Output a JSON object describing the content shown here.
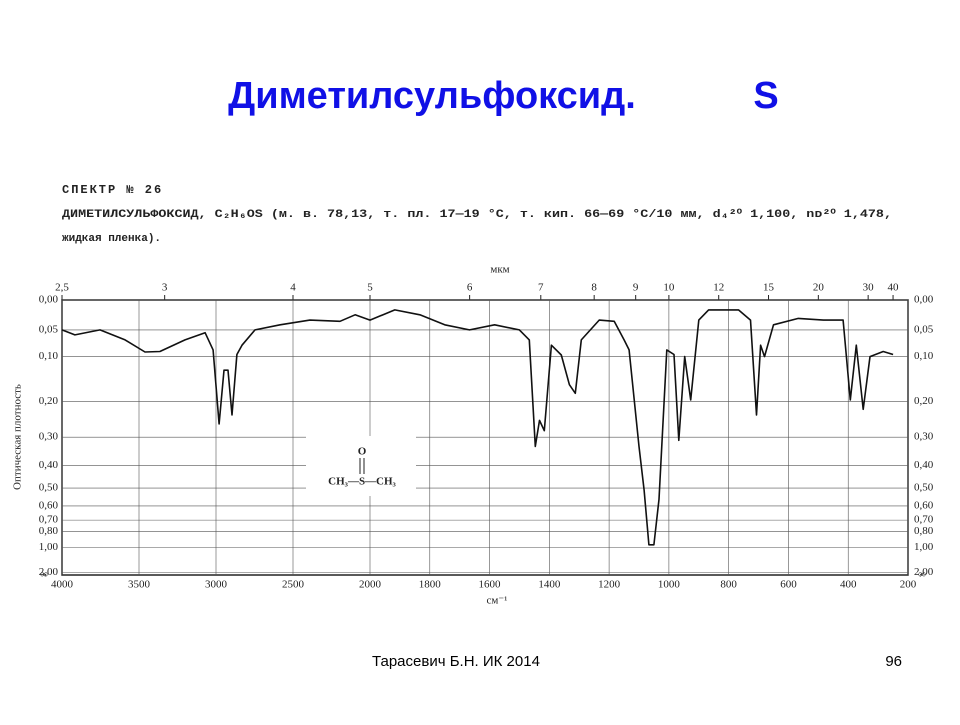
{
  "header": {
    "title": "Диметилсульфоксид.",
    "title_symbol": "S"
  },
  "spectrum_caption": {
    "line1": "СПЕКТР № 26",
    "line2": "ДИМЕТИЛСУЛЬФОКСИД, C₂H₆OS (м. в. 78,13, т. пл. 17—19 °С, т. кип. 66—69 °С/10 мм, d₄²⁰ 1,100, nᴅ²⁰ 1,478,",
    "line3": "жидкая пленка)."
  },
  "chart_data": {
    "type": "line",
    "color": "#111111",
    "grid": true,
    "xlabel": "см⁻¹",
    "ylabel": "Оптическая плотность",
    "top_axis_label": "мкм",
    "y_bottom_label": "∞",
    "structure": {
      "oxygen": "O",
      "formula": "CH₃—S—CH₃"
    },
    "xlim": [
      4000,
      200
    ],
    "xticks": [
      4000,
      3500,
      3000,
      2500,
      2000,
      1800,
      1600,
      1400,
      1200,
      1000,
      800,
      600,
      400,
      200
    ],
    "top_ticks": [
      {
        "value": 2.5,
        "label": "2,5"
      },
      3,
      4,
      5,
      6,
      7,
      8,
      9,
      10,
      12,
      15,
      20,
      30,
      40
    ],
    "yticks": [
      {
        "value": 0,
        "label": "0,00"
      },
      {
        "value": 0.05,
        "label": "0,05"
      },
      {
        "value": 0.1,
        "label": "0,10"
      },
      {
        "value": 0.2,
        "label": "0,20"
      },
      {
        "value": 0.3,
        "label": "0,30"
      },
      {
        "value": 0.4,
        "label": "0,40"
      },
      {
        "value": 0.5,
        "label": "0,50"
      },
      {
        "value": 0.6,
        "label": "0,60"
      },
      {
        "value": 0.7,
        "label": "0,70"
      },
      {
        "value": 0.8,
        "label": "0,80"
      },
      {
        "value": 1,
        "label": "1,00"
      },
      {
        "value": 2,
        "label": "2,00"
      }
    ],
    "x": [
      4000,
      3916,
      3753,
      3590,
      3461,
      3364,
      3201,
      3071,
      3019,
      2980,
      2948,
      2922,
      2896,
      2864,
      2831,
      2747,
      2584,
      2390,
      2195,
      2097,
      2000,
      1917,
      1833,
      1750,
      1667,
      1583,
      1500,
      1467,
      1447,
      1433,
      1417,
      1393,
      1360,
      1333,
      1313,
      1293,
      1233,
      1183,
      1150,
      1133,
      1100,
      1083,
      1067,
      1050,
      1033,
      1007,
      983,
      967,
      947,
      927,
      900,
      867,
      767,
      727,
      707,
      693,
      680,
      650,
      567,
      483,
      417,
      393,
      373,
      350,
      327,
      283,
      250
    ],
    "values": [
      0.05,
      0.059,
      0.05,
      0.068,
      0.091,
      0.09,
      0.068,
      0.055,
      0.087,
      0.26,
      0.128,
      0.128,
      0.235,
      0.096,
      0.078,
      0.05,
      0.041,
      0.033,
      0.035,
      0.024,
      0.033,
      0.016,
      0.024,
      0.041,
      0.05,
      0.041,
      0.05,
      0.068,
      0.33,
      0.25,
      0.28,
      0.078,
      0.097,
      0.16,
      0.18,
      0.068,
      0.033,
      0.035,
      0.068,
      0.087,
      0.33,
      0.51,
      0.96,
      0.96,
      0.56,
      0.087,
      0.096,
      0.31,
      0.1,
      0.196,
      0.033,
      0.016,
      0.016,
      0.033,
      0.235,
      0.078,
      0.1,
      0.041,
      0.03,
      0.033,
      0.033,
      0.196,
      0.078,
      0.22,
      0.1,
      0.09,
      0.096
    ]
  },
  "footer": {
    "author": "Тарасевич Б.Н.  ИК 2014",
    "page": "96"
  }
}
